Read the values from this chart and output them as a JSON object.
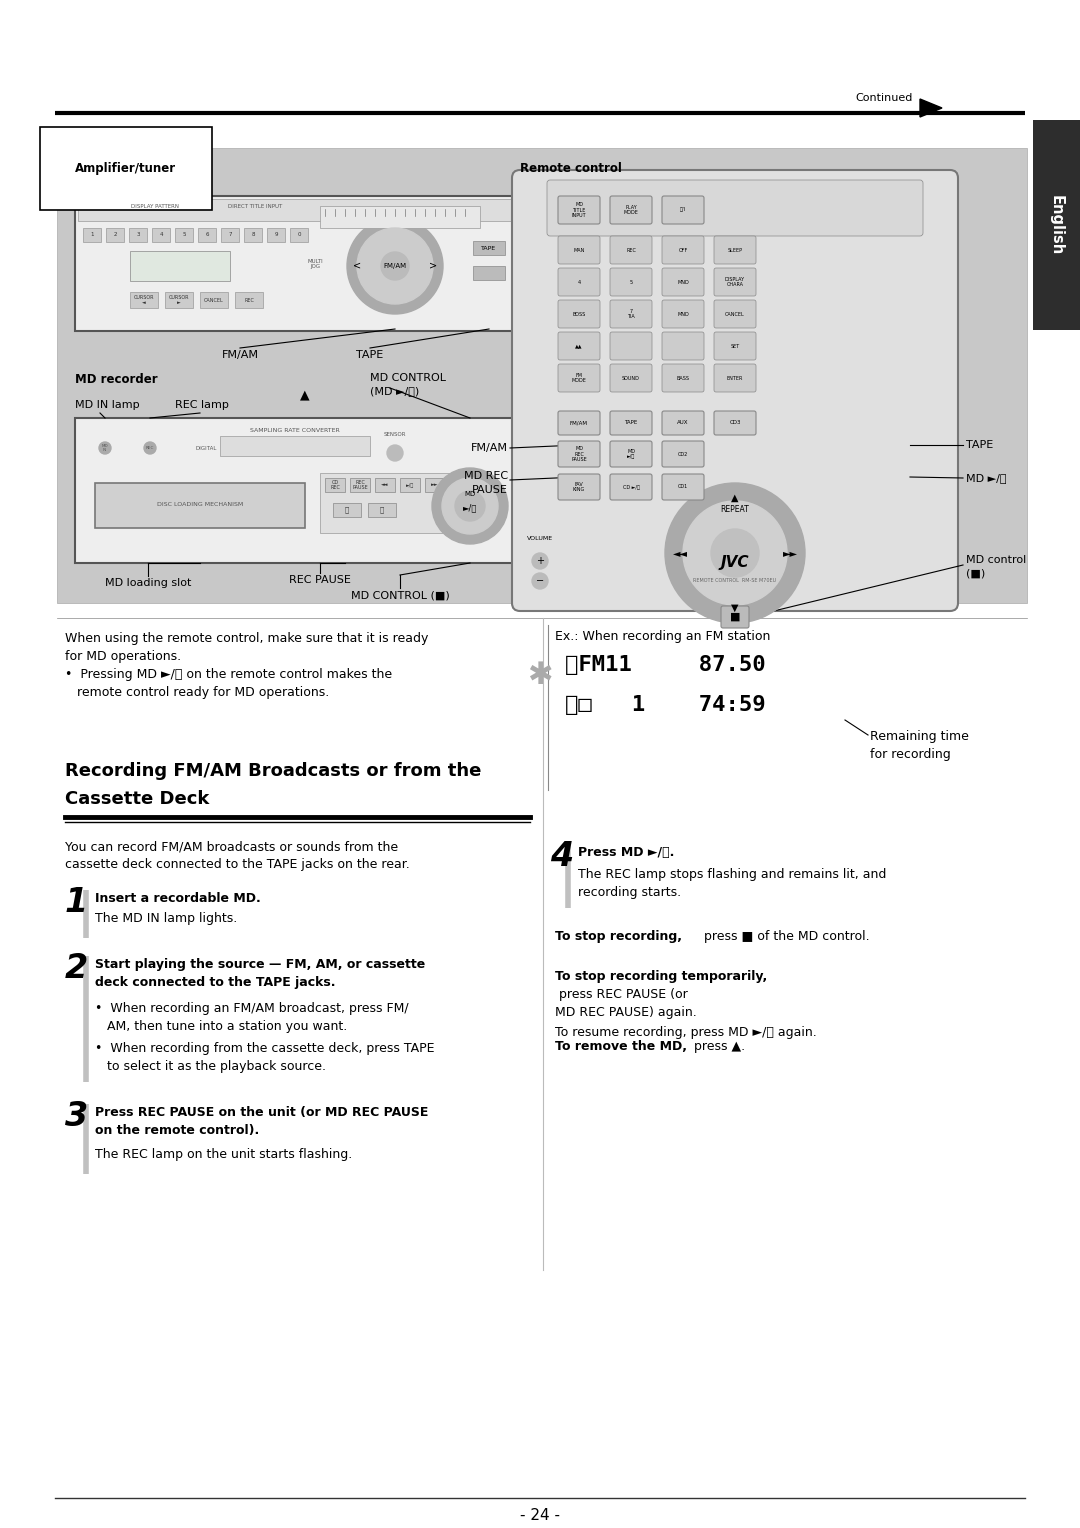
{
  "page_number": "- 24 -",
  "continued_text": "Continued",
  "background_color": "#ffffff",
  "tab_color": "#2d2d2d",
  "tab_text": "English",
  "section_title_line1": "Recording FM/AM Broadcasts or from the",
  "section_title_line2": "Cassette Deck",
  "amplifier_label": "Amplifier/tuner",
  "remote_label": "Remote control",
  "md_recorder_label": "MD recorder",
  "diagram_bg": "#c8c8c8",
  "intro_text_line1": "When using the remote control, make sure that it is ready",
  "intro_text_line2": "for MD operations.",
  "intro_bullet": "•  Pressing MD ►/⏸ on the remote control makes the",
  "intro_bullet2": "   remote control ready for MD operations.",
  "ex_label": "Ex.: When recording an FM station",
  "display_line1": "※FM11     87.50",
  "display_line2": "※□   1    74:59",
  "remaining_time_line1": "Remaining time",
  "remaining_time_line2": "for recording",
  "body_text_line1": "You can record FM/AM broadcasts or sounds from the",
  "body_text_line2": "cassette deck connected to the TAPE jacks on the rear.",
  "step1_num": "1",
  "step1_title": "Insert a recordable MD.",
  "step1_body": "The MD IN lamp lights.",
  "step2_num": "2",
  "step2_title_line1": "Start playing the source — FM, AM, or cassette",
  "step2_title_line2": "deck connected to the TAPE jacks.",
  "step2_bullet1a": "•  When recording an FM/AM broadcast, press FM/",
  "step2_bullet1b": "   AM, then tune into a station you want.",
  "step2_bullet2a": "•  When recording from the cassette deck, press TAPE",
  "step2_bullet2b": "   to select it as the playback source.",
  "step3_num": "3",
  "step3_title_line1": "Press REC PAUSE on the unit (or MD REC PAUSE",
  "step3_title_line2": "on the remote control).",
  "step3_body": "The REC lamp on the unit starts flashing.",
  "step4_num": "4",
  "step4_title": "Press MD ►/⏸.",
  "step4_body_line1": "The REC lamp stops flashing and remains lit, and",
  "step4_body_line2": "recording starts.",
  "stop_bold": "To stop recording,",
  "stop_rest": " press ■ of the MD control.",
  "stop_temp_bold": "To stop recording temporarily,",
  "stop_temp_rest": " press REC PAUSE (or",
  "stop_temp_line2": "MD REC PAUSE) again.",
  "resume_line": "To resume recording, press MD ►/⏸ again.",
  "remove_bold": "To remove the MD,",
  "remove_rest": " press ▲.",
  "label_fmam": "FM/AM",
  "label_tape": "TAPE",
  "label_mdcontrol": "MD CONTROL",
  "label_mdcontrol2": "(MD ►/⏸)",
  "label_mdinlamp": "MD IN lamp",
  "label_reclamp": "REC lamp",
  "label_mdloadingslot": "MD loading slot",
  "label_recpause": "REC PAUSE",
  "label_mdcontrolstop": "MD CONTROL (■)",
  "label_rc_fmam": "FM/AM",
  "label_rc_mdrec": "MD REC",
  "label_rc_pause": "PAUSE",
  "label_rc_tape": "TAPE",
  "label_rc_mdplay": "MD ►/⏸",
  "label_rc_mdcontrol": "MD control",
  "label_rc_mdcontrol2": "(■)"
}
